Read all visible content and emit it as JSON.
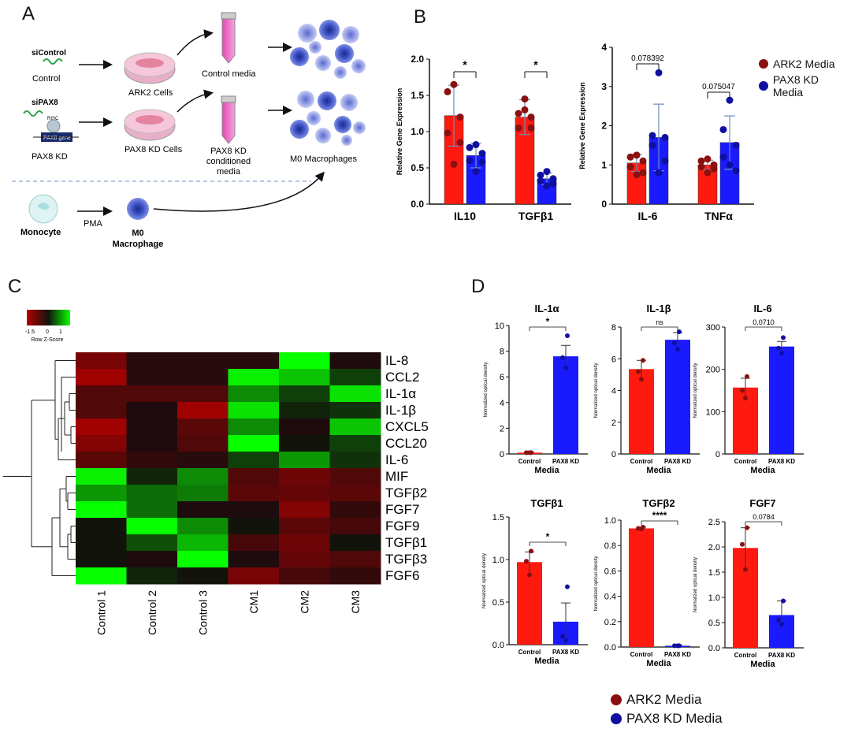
{
  "colors": {
    "red": "#FF1A10",
    "blue": "#1A1AFF",
    "dark_red": "#8B1010",
    "dark_blue": "#1010A0",
    "dashed": "#6A8FC0"
  },
  "panels": {
    "a": "A",
    "b": "B",
    "c": "C",
    "d": "D"
  },
  "panel_a": {
    "si_control": "siControl",
    "control": "Control",
    "si_pax8": "siPAX8",
    "risc": "RISC",
    "pax8_gene": "PAX8 gene",
    "pax8_kd": "PAX8 KD",
    "ark2_cells": "ARK2 Cells",
    "pax8_kd_cells": "PAX8 KD Cells",
    "control_media": "Control media",
    "pax8_kd_media_1": "PAX8 KD",
    "pax8_kd_media_2": "conditioned",
    "pax8_kd_media_3": "media",
    "m0_macrophages": "M0 Macrophages",
    "monocyte": "Monocyte",
    "pma": "PMA",
    "m0_1": "M0",
    "m0_2": "Macrophage"
  },
  "panel_b_legend": [
    {
      "label": "ARK2 Media",
      "color": "#8B1010"
    },
    {
      "label": "PAX8 KD Media",
      "color": "#1010A0"
    }
  ],
  "panel_d_legend": [
    {
      "label": "ARK2 Media",
      "color": "#8B1010"
    },
    {
      "label": "PAX8 KD Media",
      "color": "#1010A0"
    }
  ],
  "panel_c": {
    "key_ticks": [
      "-1.5",
      "0",
      "1"
    ],
    "key_label": "Row Z-Score"
  },
  "chart_data": [
    {
      "id": "b1",
      "type": "bar",
      "ylabel": "Relative Gene Expression",
      "ylim": [
        0,
        2.0
      ],
      "yticks": [
        "0.0",
        "0.5",
        "1.0",
        "1.5",
        "2.0"
      ],
      "categories": [
        "IL10",
        "TGFβ1"
      ],
      "series": [
        {
          "name": "ARK2 Media",
          "values": [
            1.22,
            1.2
          ],
          "errors": [
            0.42,
            0.24
          ],
          "points": [
            [
              1.65,
              1.55,
              1.2,
              0.98,
              0.85,
              0.55
            ],
            [
              1.3,
              1.25,
              1.2,
              1.05,
              1.05,
              1.45
            ]
          ]
        },
        {
          "name": "PAX8 KD Media",
          "values": [
            0.67,
            0.35
          ],
          "errors": [
            0.17,
            0.08
          ],
          "points": [
            [
              0.82,
              0.78,
              0.7,
              0.6,
              0.58,
              0.45
            ],
            [
              0.45,
              0.4,
              0.35,
              0.32,
              0.28,
              0.25
            ]
          ]
        }
      ],
      "annotations": [
        "*",
        "*"
      ]
    },
    {
      "id": "b2",
      "type": "bar",
      "ylabel": "Relative Gene Expression",
      "ylim": [
        0,
        4
      ],
      "yticks": [
        "0",
        "1",
        "2",
        "3",
        "4"
      ],
      "categories": [
        "IL-6",
        "TNFα"
      ],
      "series": [
        {
          "name": "ARK2 Media",
          "values": [
            1.05,
            1.0
          ],
          "errors": [
            0.22,
            0.12
          ],
          "points": [
            [
              1.25,
              1.2,
              1.1,
              0.95,
              0.8,
              0.75
            ],
            [
              1.15,
              1.1,
              1.0,
              0.95,
              0.9,
              0.8
            ]
          ]
        },
        {
          "name": "PAX8 KD Media",
          "values": [
            1.7,
            1.57
          ],
          "errors": [
            0.85,
            0.68
          ],
          "points": [
            [
              3.35,
              1.75,
              1.7,
              1.5,
              1.1,
              0.8
            ],
            [
              2.65,
              1.9,
              1.5,
              1.2,
              0.85,
              1.0
            ]
          ]
        }
      ],
      "annotations": [
        "0.078392",
        "0.075047"
      ]
    },
    {
      "id": "c",
      "type": "heatmap",
      "rows": [
        "IL-8",
        "CCL2",
        "IL-1α",
        "IL-1β",
        "CXCL5",
        "CCL20",
        "IL-6",
        "MIF",
        "TGFβ2",
        "FGF7",
        "FGF9",
        "TGFβ1",
        "TGFβ3",
        "FGF6"
      ],
      "columns": [
        "Control 1",
        "Control 2",
        "Control 3",
        "CM1",
        "CM2",
        "CM3"
      ],
      "z": [
        [
          -1.0,
          -0.2,
          -0.2,
          -0.2,
          1.6,
          -0.1
        ],
        [
          -1.4,
          -0.2,
          -0.2,
          1.5,
          1.2,
          0.3
        ],
        [
          -0.6,
          -0.6,
          -0.6,
          0.8,
          0.3,
          1.4
        ],
        [
          -0.6,
          -0.1,
          -1.4,
          1.4,
          0.1,
          0.2
        ],
        [
          -1.4,
          -0.1,
          -0.7,
          0.8,
          -0.1,
          1.2
        ],
        [
          -1.1,
          -0.1,
          -0.6,
          1.6,
          0.0,
          0.3
        ],
        [
          -0.7,
          -0.3,
          -0.2,
          0.3,
          0.9,
          0.2
        ],
        [
          1.5,
          0.1,
          0.8,
          -0.6,
          -0.9,
          -0.6
        ],
        [
          0.9,
          0.6,
          0.7,
          -0.7,
          -0.8,
          -0.7
        ],
        [
          1.6,
          0.6,
          -0.1,
          -0.1,
          -1.1,
          -0.3
        ],
        [
          0.0,
          1.6,
          0.8,
          0.0,
          -0.7,
          -0.5
        ],
        [
          0.0,
          0.4,
          1.1,
          -0.5,
          -0.9,
          0.0
        ],
        [
          0.0,
          -0.1,
          1.6,
          -0.1,
          -0.8,
          -0.6
        ],
        [
          1.6,
          0.1,
          0.0,
          -1.0,
          -0.5,
          -0.3
        ]
      ]
    },
    {
      "id": "d1",
      "type": "bar",
      "title": "IL-1α",
      "xlabel": "Media",
      "ylabel": "Normalized optical density",
      "ylim": [
        0,
        10
      ],
      "yticks": [
        "0",
        "2",
        "4",
        "6",
        "8",
        "10"
      ],
      "categories": [
        "Control",
        "PAX8 KD"
      ],
      "values": [
        0.1,
        7.6
      ],
      "errors": [
        0.05,
        0.85
      ],
      "points": [
        [
          0.1,
          0.1,
          0.1
        ],
        [
          9.2,
          7.5,
          6.7
        ]
      ],
      "annotation": "*"
    },
    {
      "id": "d2",
      "type": "bar",
      "title": "IL-1β",
      "xlabel": "Media",
      "ylabel": "Normalized optical density",
      "ylim": [
        0,
        8
      ],
      "yticks": [
        "0",
        "2",
        "4",
        "6",
        "8"
      ],
      "categories": [
        "Control",
        "PAX8 KD"
      ],
      "values": [
        5.35,
        7.2
      ],
      "errors": [
        0.55,
        0.45
      ],
      "points": [
        [
          5.9,
          5.2,
          4.7
        ],
        [
          7.7,
          7.0,
          6.6
        ]
      ],
      "annotation": "ns"
    },
    {
      "id": "d3",
      "type": "bar",
      "title": "IL-6",
      "xlabel": "Media",
      "ylabel": "Normalized optical density",
      "ylim": [
        0,
        300
      ],
      "yticks": [
        "0",
        "100",
        "200",
        "300"
      ],
      "categories": [
        "Control",
        "PAX8 KD"
      ],
      "values": [
        157,
        254
      ],
      "errors": [
        22,
        12
      ],
      "points": [
        [
          183,
          150,
          132
        ],
        [
          275,
          250,
          238
        ]
      ],
      "annotation": "0.0710"
    },
    {
      "id": "d4",
      "type": "bar",
      "title": "TGFβ1",
      "xlabel": "Media",
      "ylabel": "Normalized optical density",
      "ylim": [
        0,
        1.5
      ],
      "yticks": [
        "0.0",
        "0.5",
        "1.0",
        "1.5"
      ],
      "categories": [
        "Control",
        "PAX8 KD"
      ],
      "values": [
        0.97,
        0.27
      ],
      "errors": [
        0.12,
        0.22
      ],
      "points": [
        [
          1.1,
          0.98,
          0.82
        ],
        [
          0.68,
          0.1,
          0.05
        ]
      ],
      "annotation": "*"
    },
    {
      "id": "d5",
      "type": "bar",
      "title": "TGFβ2",
      "xlabel": "Media",
      "ylabel": "Normalized optical density",
      "ylim": [
        0,
        1.0
      ],
      "yticks": [
        "0.0",
        "0.2",
        "0.4",
        "0.6",
        "0.8",
        "1.0"
      ],
      "categories": [
        "Control",
        "PAX8 KD"
      ],
      "values": [
        0.935,
        0.01
      ],
      "errors": [
        0.01,
        0.005
      ],
      "points": [
        [
          0.945,
          0.935,
          0.93
        ],
        [
          0.01,
          0.01,
          0.01
        ]
      ],
      "annotation": "****"
    },
    {
      "id": "d6",
      "type": "bar",
      "title": "FGF7",
      "xlabel": "Media",
      "ylabel": "Normalized optical density",
      "ylim": [
        0,
        2.5
      ],
      "yticks": [
        "0.0",
        "0.5",
        "1.0",
        "1.5",
        "2.0",
        "2.5"
      ],
      "categories": [
        "Control",
        "PAX8 KD"
      ],
      "values": [
        1.98,
        0.65
      ],
      "errors": [
        0.4,
        0.28
      ],
      "points": [
        [
          2.38,
          2.05,
          1.55
        ],
        [
          0.93,
          0.55,
          0.47
        ]
      ],
      "annotation": "0.0784"
    }
  ]
}
